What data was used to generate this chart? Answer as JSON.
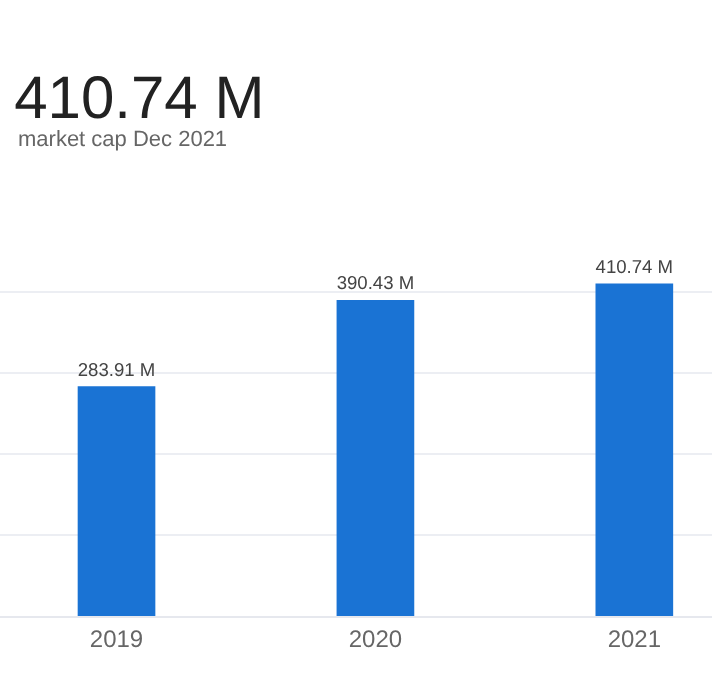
{
  "chart_data": {
    "type": "bar",
    "title": "410.74 M",
    "subtitle": "market cap Dec 2021",
    "categories": [
      "2019",
      "2020",
      "2021"
    ],
    "values": [
      283.91,
      390.43,
      410.74
    ],
    "value_labels": [
      "283.91 M",
      "390.43 M",
      "410.74 M"
    ],
    "color": "#1a73d4",
    "tick_labels": "x",
    "grid": true
  }
}
